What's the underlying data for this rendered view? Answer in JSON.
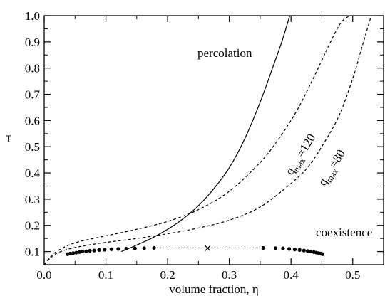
{
  "chart_data": {
    "type": "line",
    "title": "",
    "xlabel": "volume fraction, η",
    "ylabel": "τ",
    "xlim": [
      0.0,
      0.55
    ],
    "ylim": [
      0.05,
      1.0
    ],
    "x_ticks": [
      0.0,
      0.1,
      0.2,
      0.3,
      0.4,
      0.5
    ],
    "x_tick_labels": [
      "0.0",
      "0.1",
      "0.2",
      "0.3",
      "0.4",
      "0.5"
    ],
    "y_ticks": [
      0.1,
      0.2,
      0.3,
      0.4,
      0.5,
      0.6,
      0.7,
      0.8,
      0.9,
      1.0
    ],
    "y_tick_labels": [
      "0.1",
      "0.2",
      "0.3",
      "0.4",
      "0.5",
      "0.6",
      "0.7",
      "0.8",
      "0.9",
      "1.0"
    ],
    "grid": false,
    "legend": "none",
    "series": [
      {
        "name": "percolation",
        "style": "solid",
        "x": [
          0.125,
          0.15,
          0.175,
          0.2,
          0.225,
          0.25,
          0.275,
          0.3,
          0.325,
          0.35,
          0.37,
          0.385,
          0.398
        ],
        "y": [
          0.1,
          0.125,
          0.152,
          0.185,
          0.225,
          0.275,
          0.34,
          0.42,
          0.53,
          0.67,
          0.8,
          0.9,
          1.0
        ]
      },
      {
        "name": "q_max=120",
        "label": "q",
        "label_sub": "max",
        "label_rest": "=120",
        "style": "dashed",
        "x": [
          0.0,
          0.01,
          0.02,
          0.04,
          0.06,
          0.08,
          0.1,
          0.15,
          0.2,
          0.25,
          0.3,
          0.35,
          0.38,
          0.41,
          0.44,
          0.46,
          0.48,
          0.495
        ],
        "y": [
          0.05,
          0.08,
          0.1,
          0.125,
          0.14,
          0.15,
          0.16,
          0.185,
          0.215,
          0.26,
          0.33,
          0.44,
          0.53,
          0.64,
          0.78,
          0.88,
          0.97,
          1.0
        ]
      },
      {
        "name": "q_max=80",
        "label": "q",
        "label_sub": "max",
        "label_rest": "=80",
        "style": "dashed",
        "x": [
          0.0,
          0.01,
          0.02,
          0.04,
          0.06,
          0.08,
          0.1,
          0.15,
          0.2,
          0.25,
          0.3,
          0.35,
          0.4,
          0.43,
          0.46,
          0.48,
          0.5,
          0.515,
          0.53
        ],
        "y": [
          0.05,
          0.075,
          0.093,
          0.11,
          0.12,
          0.128,
          0.135,
          0.15,
          0.168,
          0.19,
          0.22,
          0.27,
          0.36,
          0.43,
          0.54,
          0.63,
          0.76,
          0.88,
          1.0
        ]
      }
    ],
    "coexistence": {
      "label": "coexistence",
      "style": "dotted",
      "points_x": [
        0.038,
        0.042,
        0.047,
        0.052,
        0.057,
        0.062,
        0.068,
        0.074,
        0.081,
        0.089,
        0.098,
        0.109,
        0.12,
        0.133,
        0.147,
        0.162,
        0.178,
        0.355,
        0.375,
        0.387,
        0.397,
        0.406,
        0.414,
        0.421,
        0.427,
        0.432,
        0.437,
        0.441,
        0.445,
        0.448,
        0.451
      ],
      "points_y": [
        0.09,
        0.092,
        0.094,
        0.096,
        0.098,
        0.1,
        0.101,
        0.103,
        0.104,
        0.106,
        0.107,
        0.109,
        0.11,
        0.111,
        0.112,
        0.113,
        0.114,
        0.114,
        0.113,
        0.112,
        0.11,
        0.108,
        0.106,
        0.104,
        0.102,
        0.1,
        0.098,
        0.096,
        0.094,
        0.092,
        0.09
      ],
      "critical_point": {
        "x": 0.265,
        "y": 0.113
      }
    }
  }
}
